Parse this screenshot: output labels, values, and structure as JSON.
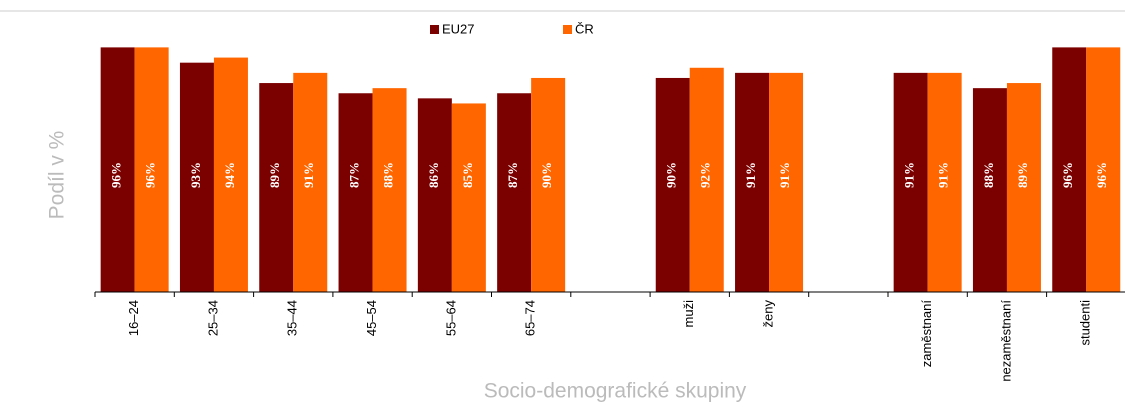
{
  "chart_data": {
    "type": "bar",
    "ylabel": "Podíl v %",
    "xlabel": "Socio-demografické skupiny",
    "categories": [
      "16–24",
      "25–34",
      "35–44",
      "45–54",
      "55–64",
      "65–74",
      null,
      "muži",
      "ženy",
      null,
      "zaměstnaní",
      "nezaměstnaní",
      "studenti"
    ],
    "series": [
      {
        "name": "EU27",
        "color": "#7b0000",
        "values": [
          96,
          93,
          89,
          87,
          86,
          87,
          null,
          90,
          91,
          null,
          91,
          88,
          96
        ],
        "value_labels": [
          "96%",
          "93%",
          "89%",
          "87%",
          "86%",
          "87%",
          null,
          "90%",
          "91%",
          null,
          "91%",
          "88%",
          "96%"
        ]
      },
      {
        "name": "ČR",
        "color": "#ff6600",
        "values": [
          96,
          94,
          91,
          88,
          85,
          90,
          null,
          92,
          91,
          null,
          91,
          89,
          96
        ],
        "value_labels": [
          "96%",
          "94%",
          "91%",
          "88%",
          "85%",
          "90%",
          null,
          "92%",
          "91%",
          null,
          "91%",
          "89%",
          "96%"
        ]
      }
    ],
    "ylim": [
      48,
      100
    ],
    "legend": "top"
  }
}
